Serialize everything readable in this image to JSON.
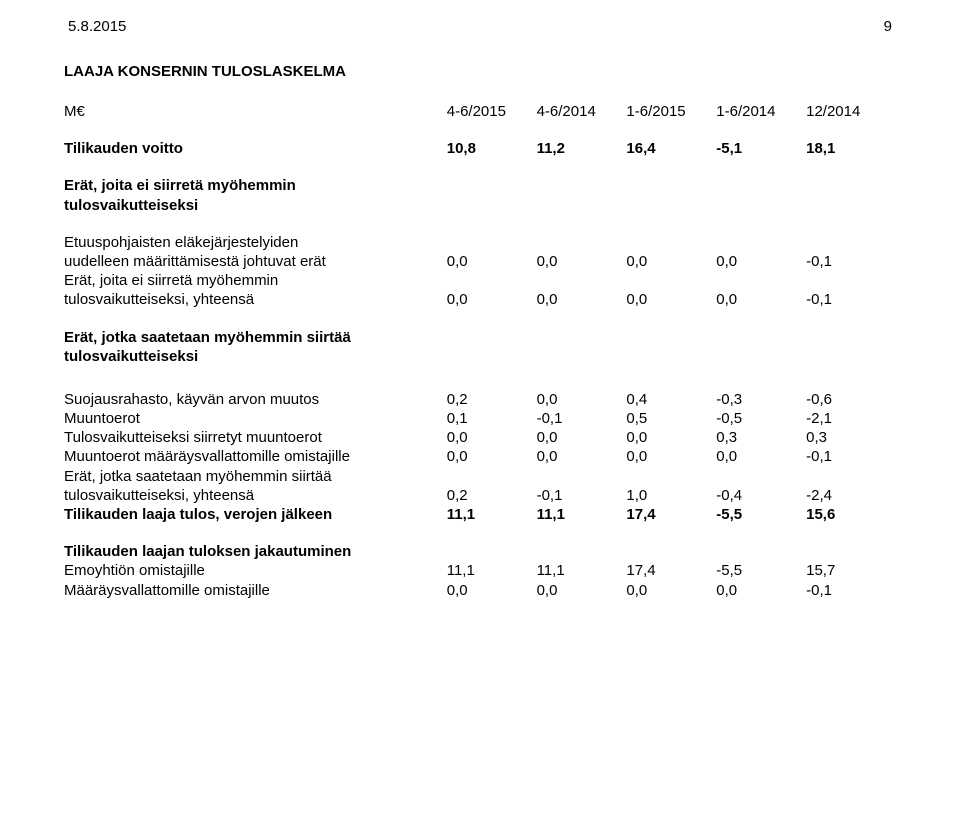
{
  "header": {
    "date": "5.8.2015",
    "page": "9"
  },
  "title": "LAAJA KONSERNIN TULOSLASKELMA",
  "columns": {
    "unit": "M€",
    "c1": "4-6/2015",
    "c2": "4-6/2014",
    "c3": "1-6/2015",
    "c4": "1-6/2014",
    "c5": "12/2014"
  },
  "rows": {
    "r1": {
      "label": "Tilikauden voitto",
      "v": [
        "10,8",
        "11,2",
        "16,4",
        "-5,1",
        "18,1"
      ]
    },
    "h1a": "Erät, joita ei siirretä myöhemmin",
    "h1b": "tulosvaikutteiseksi",
    "r2a": "Etuuspohjaisten eläkejärjestelyiden",
    "r2b": {
      "label": "uudelleen määrittämisestä johtuvat erät",
      "v": [
        "0,0",
        "0,0",
        "0,0",
        "0,0",
        "-0,1"
      ]
    },
    "r3a": "Erät, joita ei siirretä myöhemmin",
    "r3b": {
      "label": "tulosvaikutteiseksi, yhteensä",
      "v": [
        "0,0",
        "0,0",
        "0,0",
        "0,0",
        "-0,1"
      ]
    },
    "h2a": "Erät, jotka saatetaan myöhemmin siirtää",
    "h2b": "tulosvaikutteiseksi",
    "r4": {
      "label": "Suojausrahasto, käyvän arvon muutos",
      "v": [
        "0,2",
        "0,0",
        "0,4",
        "-0,3",
        "-0,6"
      ]
    },
    "r5": {
      "label": "Muuntoerot",
      "v": [
        "0,1",
        "-0,1",
        "0,5",
        "-0,5",
        "-2,1"
      ]
    },
    "r6": {
      "label": "Tulosvaikutteiseksi siirretyt muuntoerot",
      "v": [
        "0,0",
        "0,0",
        "0,0",
        "0,3",
        "0,3"
      ]
    },
    "r7": {
      "label": "Muuntoerot määräysvallattomille omistajille",
      "v": [
        "0,0",
        "0,0",
        "0,0",
        "0,0",
        "-0,1"
      ]
    },
    "r8a": "Erät, jotka saatetaan myöhemmin siirtää",
    "r8b": {
      "label": "tulosvaikutteiseksi, yhteensä",
      "v": [
        "0,2",
        "-0,1",
        "1,0",
        "-0,4",
        "-2,4"
      ]
    },
    "r9": {
      "label": "Tilikauden laaja tulos, verojen jälkeen",
      "v": [
        "11,1",
        "11,1",
        "17,4",
        "-5,5",
        "15,6"
      ]
    },
    "h3": "Tilikauden laajan tuloksen jakautuminen",
    "r10": {
      "label": "Emoyhtiön omistajille",
      "v": [
        "11,1",
        "11,1",
        "17,4",
        "-5,5",
        "15,7"
      ]
    },
    "r11": {
      "label": "Määräysvallattomille omistajille",
      "v": [
        "0,0",
        "0,0",
        "0,0",
        "0,0",
        "-0,1"
      ]
    }
  }
}
